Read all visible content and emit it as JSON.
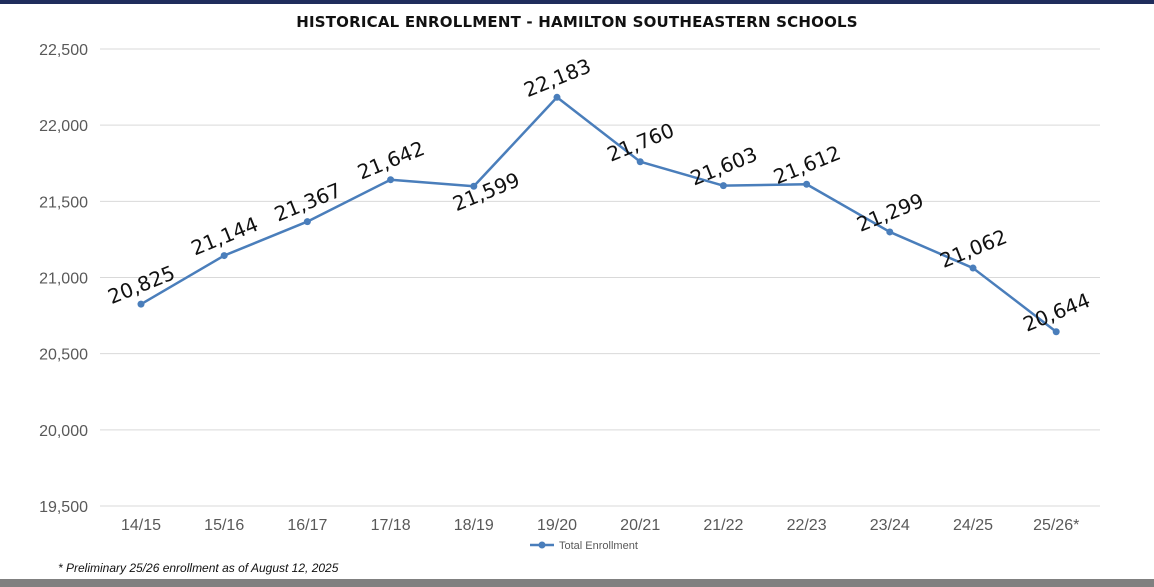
{
  "chart_data": {
    "type": "line",
    "title": "HISTORICAL ENROLLMENT - HAMILTON SOUTHEASTERN SCHOOLS",
    "categories": [
      "14/15",
      "15/16",
      "16/17",
      "17/18",
      "18/19",
      "19/20",
      "20/21",
      "21/22",
      "22/23",
      "23/24",
      "24/25",
      "25/26*"
    ],
    "series": [
      {
        "name": "Total Enrollment",
        "values": [
          20825,
          21144,
          21367,
          21642,
          21599,
          22183,
          21760,
          21603,
          21612,
          21299,
          21062,
          20644
        ],
        "labels": [
          "20,825",
          "21,144",
          "21,367",
          "21,642",
          "21,599",
          "22,183",
          "21,760",
          "21,603",
          "21,612",
          "21,299",
          "21,062",
          "20,644"
        ],
        "color": "#4a7ebb"
      }
    ],
    "ylim": [
      19500,
      22500
    ],
    "yticks": [
      19500,
      20000,
      20500,
      21000,
      21500,
      22000,
      22500
    ],
    "ytick_labels": [
      "19,500",
      "20,000",
      "20,500",
      "21,000",
      "21,500",
      "22,000",
      "22,500"
    ],
    "xlabel": "",
    "ylabel": "",
    "grid": true,
    "legend": "bottom-center"
  },
  "footnote": "* Preliminary 25/26 enrollment as of August 12, 2025",
  "colors": {
    "line": "#4a7ebb",
    "grid": "#d9d9d9",
    "top_bar": "#1f2d5c",
    "bottom_bar": "#808080"
  }
}
